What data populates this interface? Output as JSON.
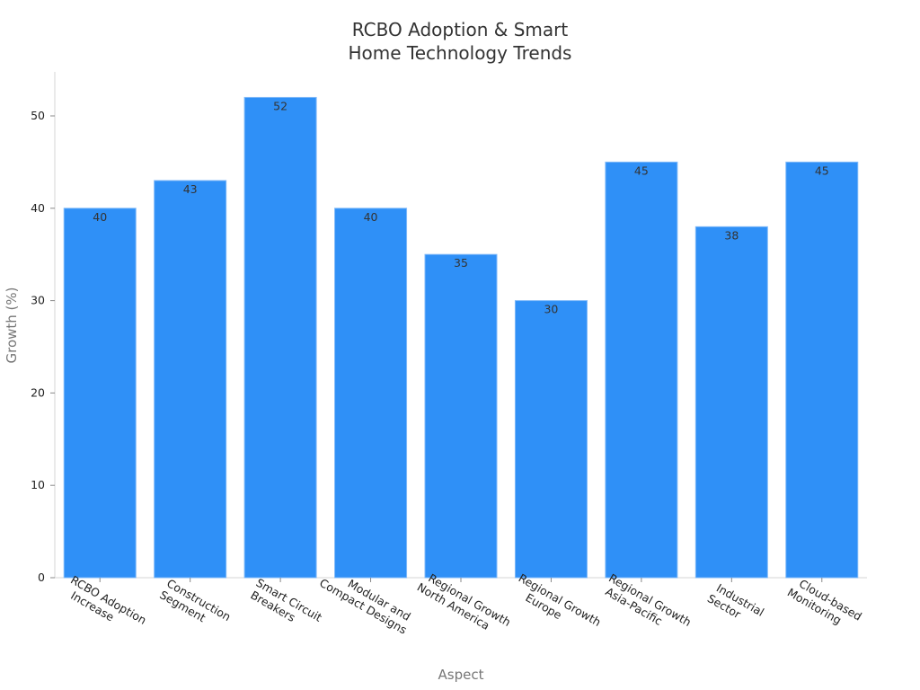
{
  "chart_data": {
    "type": "bar",
    "title_lines": [
      "RCBO Adoption & Smart",
      "Home Technology Trends"
    ],
    "xlabel": "Aspect",
    "ylabel": "Growth (%)",
    "ylim": [
      0,
      55
    ],
    "yticks": [
      0,
      10,
      20,
      30,
      40,
      50
    ],
    "grid": false,
    "categories": [
      [
        "RCBO Adoption",
        "Increase"
      ],
      [
        "Construction",
        "Segment"
      ],
      [
        "Smart Circuit",
        "Breakers"
      ],
      [
        "Modular and",
        "Compact Designs"
      ],
      [
        "Regional Growth",
        "North America"
      ],
      [
        "Regional Growth",
        "Europe"
      ],
      [
        "Regional Growth",
        "Asia-Pacific"
      ],
      [
        "Industrial",
        "Sector"
      ],
      [
        "Cloud-based",
        "Monitoring"
      ]
    ],
    "values": [
      40,
      43,
      52,
      40,
      35,
      30,
      45,
      38,
      45
    ],
    "colors": {
      "bar": "#2f90f7",
      "bar_stroke": "#7fb9f9"
    }
  }
}
